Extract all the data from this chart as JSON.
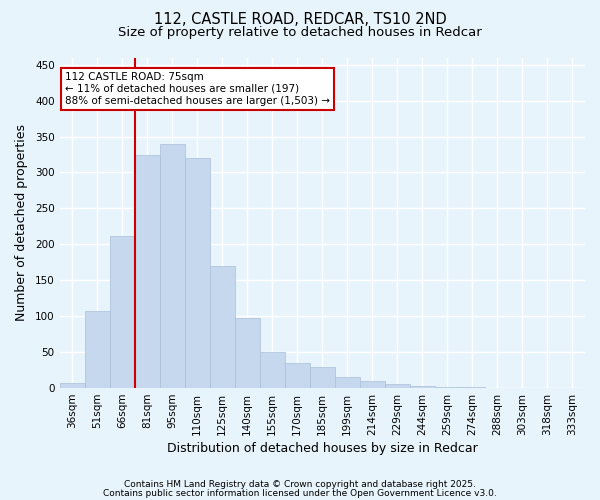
{
  "title1": "112, CASTLE ROAD, REDCAR, TS10 2ND",
  "title2": "Size of property relative to detached houses in Redcar",
  "xlabel": "Distribution of detached houses by size in Redcar",
  "ylabel": "Number of detached properties",
  "categories": [
    "36sqm",
    "51sqm",
    "66sqm",
    "81sqm",
    "95sqm",
    "110sqm",
    "125sqm",
    "140sqm",
    "155sqm",
    "170sqm",
    "185sqm",
    "199sqm",
    "214sqm",
    "229sqm",
    "244sqm",
    "259sqm",
    "274sqm",
    "288sqm",
    "303sqm",
    "318sqm",
    "333sqm"
  ],
  "values": [
    7,
    107,
    212,
    325,
    340,
    320,
    170,
    98,
    50,
    35,
    30,
    15,
    10,
    5,
    3,
    1,
    1,
    0,
    0,
    0,
    0
  ],
  "bar_color": "#c5d8ee",
  "bar_edge_color": "#aabfda",
  "vline_x": 2.5,
  "vline_color": "#cc0000",
  "annotation_text": "112 CASTLE ROAD: 75sqm\n← 11% of detached houses are smaller (197)\n88% of semi-detached houses are larger (1,503) →",
  "annotation_box_color": "white",
  "annotation_box_edge_color": "#cc0000",
  "ylim": [
    0,
    460
  ],
  "yticks": [
    0,
    50,
    100,
    150,
    200,
    250,
    300,
    350,
    400,
    450
  ],
  "footer1": "Contains HM Land Registry data © Crown copyright and database right 2025.",
  "footer2": "Contains public sector information licensed under the Open Government Licence v3.0.",
  "bg_color": "#e8f4fc",
  "plot_bg_color": "#e8f4fc",
  "grid_color": "white",
  "title_fontsize": 10.5,
  "subtitle_fontsize": 9.5,
  "tick_fontsize": 7.5,
  "label_fontsize": 9,
  "footer_fontsize": 6.5
}
